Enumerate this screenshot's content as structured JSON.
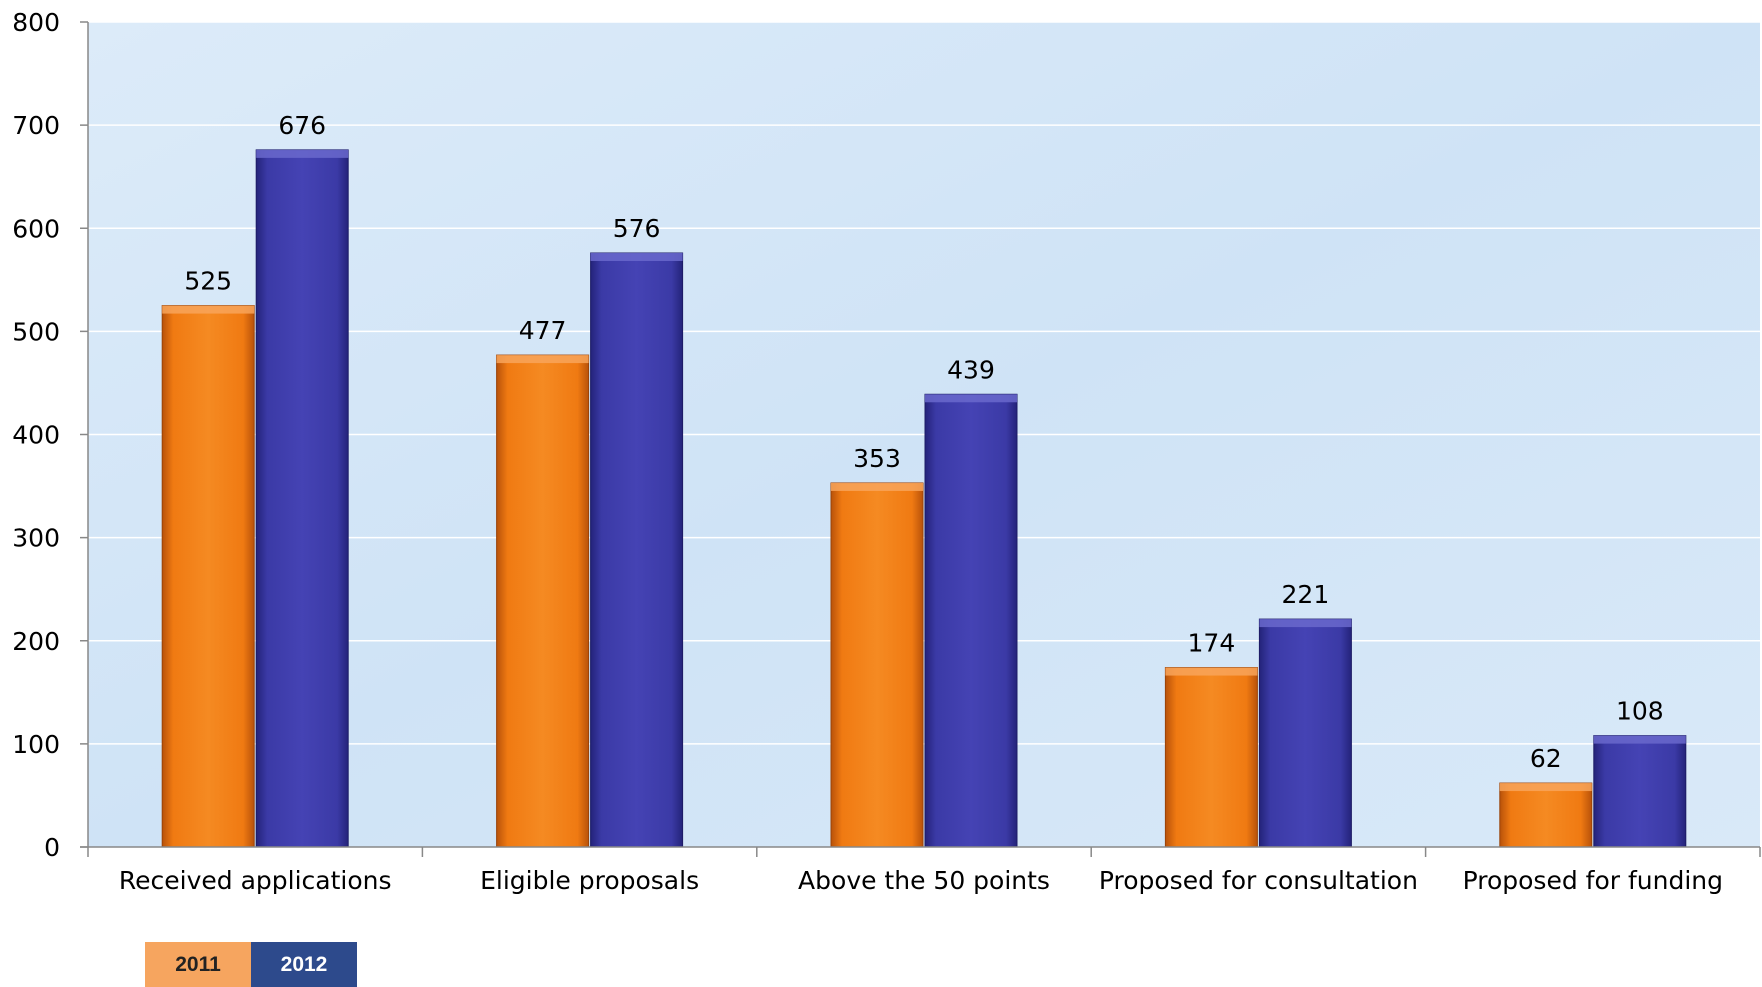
{
  "chart_data": {
    "type": "bar",
    "categories": [
      "Received applications",
      "Eligible proposals",
      "Above the 50 points",
      "Proposed for consultation",
      "Proposed for funding"
    ],
    "series": [
      {
        "name": "2011",
        "values": [
          525,
          477,
          353,
          174,
          62
        ],
        "color": "#f07a12"
      },
      {
        "name": "2012",
        "values": [
          676,
          576,
          439,
          221,
          108
        ],
        "color": "#3b3aa6"
      }
    ],
    "ylim": [
      0,
      800
    ],
    "yticks": [
      0,
      100,
      200,
      300,
      400,
      500,
      600,
      700,
      800
    ],
    "grid": true,
    "legend_placement": "bottom-left"
  }
}
